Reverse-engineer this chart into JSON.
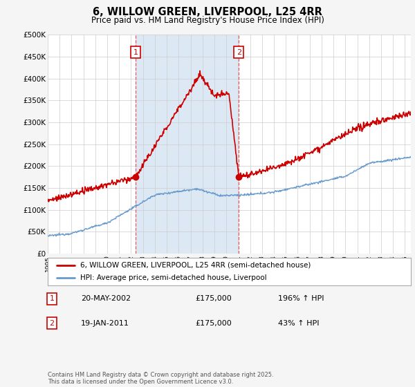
{
  "title": "6, WILLOW GREEN, LIVERPOOL, L25 4RR",
  "subtitle": "Price paid vs. HM Land Registry's House Price Index (HPI)",
  "legend_line1": "6, WILLOW GREEN, LIVERPOOL, L25 4RR (semi-detached house)",
  "legend_line2": "HPI: Average price, semi-detached house, Liverpool",
  "annotation1_date": "20-MAY-2002",
  "annotation1_price": "£175,000",
  "annotation1_hpi": "196% ↑ HPI",
  "annotation2_date": "19-JAN-2011",
  "annotation2_price": "£175,000",
  "annotation2_hpi": "43% ↑ HPI",
  "footer": "Contains HM Land Registry data © Crown copyright and database right 2025.\nThis data is licensed under the Open Government Licence v3.0.",
  "ylim": [
    0,
    500000
  ],
  "yticks": [
    0,
    50000,
    100000,
    150000,
    200000,
    250000,
    300000,
    350000,
    400000,
    450000,
    500000
  ],
  "background_color": "#f5f5f5",
  "plot_bg_color": "#ffffff",
  "shade_color": "#dde8f5",
  "red_color": "#cc0000",
  "blue_color": "#6699cc",
  "vline_color": "#dd4444",
  "marker1_x": 2002.38,
  "marker1_y": 175000,
  "marker2_x": 2011.05,
  "marker2_y": 175000,
  "xmin": 1995,
  "xmax": 2025.5
}
